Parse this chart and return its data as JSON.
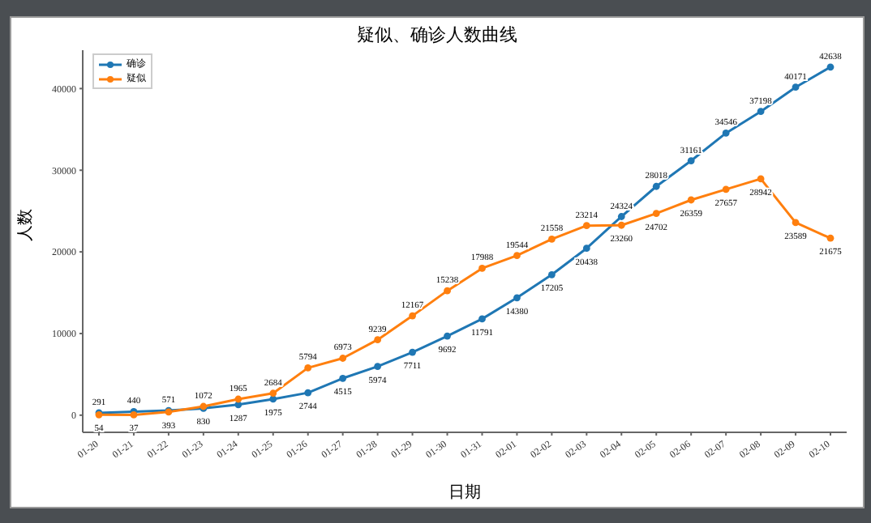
{
  "chart_data": {
    "type": "line",
    "title": "疑似、确诊人数曲线",
    "xlabel": "日期",
    "ylabel": "人数",
    "categories": [
      "01-20",
      "01-21",
      "01-22",
      "01-23",
      "01-24",
      "01-25",
      "01-26",
      "01-27",
      "01-28",
      "01-29",
      "01-30",
      "01-31",
      "02-01",
      "02-02",
      "02-03",
      "02-04",
      "02-05",
      "02-06",
      "02-07",
      "02-08",
      "02-09",
      "02-10"
    ],
    "series": [
      {
        "name": "确诊",
        "color": "#1f77b4",
        "values": [
          291,
          440,
          571,
          830,
          1287,
          1975,
          2744,
          4515,
          5974,
          7711,
          9692,
          11791,
          14380,
          17205,
          20438,
          24324,
          28018,
          31161,
          34546,
          37198,
          40171,
          42638
        ]
      },
      {
        "name": "疑似",
        "color": "#ff7f0e",
        "values": [
          54,
          37,
          393,
          1072,
          1965,
          2684,
          5794,
          6973,
          9239,
          12167,
          15238,
          17988,
          19544,
          21558,
          23214,
          23260,
          24702,
          26359,
          27657,
          28942,
          23589,
          21675
        ]
      }
    ],
    "ylim": [
      -2100,
      44700
    ],
    "yticks": [
      0,
      10000,
      20000,
      30000,
      40000
    ],
    "grid": false,
    "legend": "top left",
    "marker": "circle",
    "line_style": "solid",
    "data_labels": true
  }
}
